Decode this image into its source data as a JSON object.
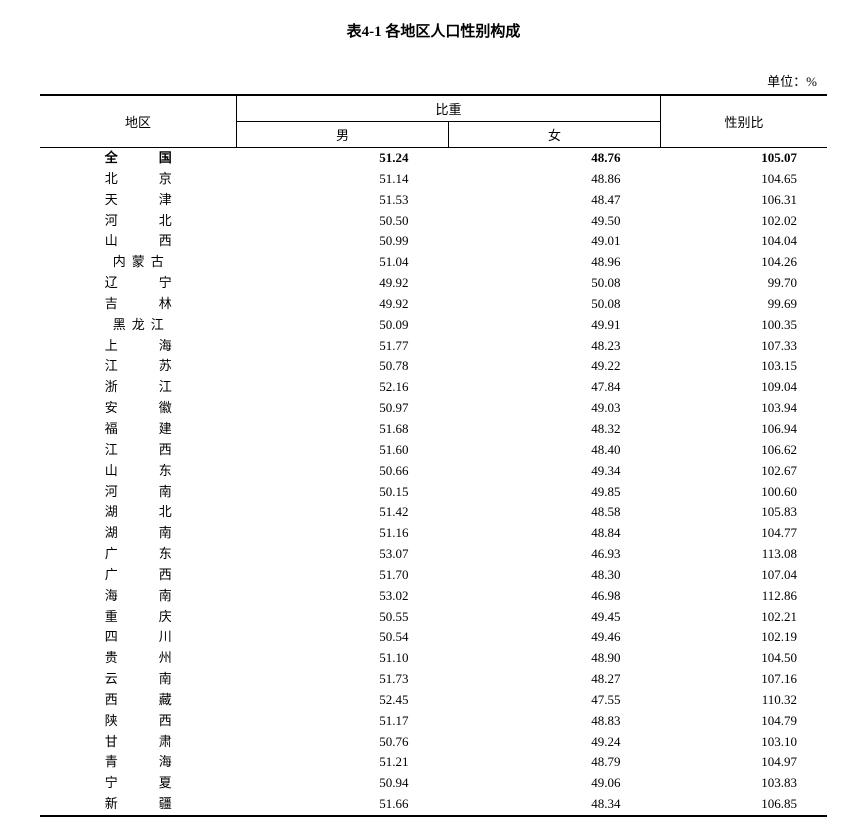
{
  "title": "表4-1 各地区人口性别构成",
  "unit": "单位：%",
  "headers": {
    "region": "地区",
    "proportion": "比重",
    "male": "男",
    "female": "女",
    "ratio": "性别比"
  },
  "table": {
    "columns": [
      "地区",
      "男",
      "女",
      "性别比"
    ],
    "col_align": [
      "center",
      "right",
      "right",
      "right"
    ],
    "border_color": "#000000",
    "background_color": "#ffffff",
    "font_size": 13
  },
  "rows": [
    {
      "region": "全　国",
      "chars": 2,
      "male": "51.24",
      "female": "48.76",
      "ratio": "105.07",
      "bold": true
    },
    {
      "region": "北　京",
      "chars": 2,
      "male": "51.14",
      "female": "48.86",
      "ratio": "104.65"
    },
    {
      "region": "天　津",
      "chars": 2,
      "male": "51.53",
      "female": "48.47",
      "ratio": "106.31"
    },
    {
      "region": "河　北",
      "chars": 2,
      "male": "50.50",
      "female": "49.50",
      "ratio": "102.02"
    },
    {
      "region": "山　西",
      "chars": 2,
      "male": "50.99",
      "female": "49.01",
      "ratio": "104.04"
    },
    {
      "region": "内蒙古",
      "chars": 3,
      "male": "51.04",
      "female": "48.96",
      "ratio": "104.26"
    },
    {
      "region": "辽　宁",
      "chars": 2,
      "male": "49.92",
      "female": "50.08",
      "ratio": "99.70"
    },
    {
      "region": "吉　林",
      "chars": 2,
      "male": "49.92",
      "female": "50.08",
      "ratio": "99.69"
    },
    {
      "region": "黑龙江",
      "chars": 3,
      "male": "50.09",
      "female": "49.91",
      "ratio": "100.35"
    },
    {
      "region": "上　海",
      "chars": 2,
      "male": "51.77",
      "female": "48.23",
      "ratio": "107.33"
    },
    {
      "region": "江　苏",
      "chars": 2,
      "male": "50.78",
      "female": "49.22",
      "ratio": "103.15"
    },
    {
      "region": "浙　江",
      "chars": 2,
      "male": "52.16",
      "female": "47.84",
      "ratio": "109.04"
    },
    {
      "region": "安　徽",
      "chars": 2,
      "male": "50.97",
      "female": "49.03",
      "ratio": "103.94"
    },
    {
      "region": "福　建",
      "chars": 2,
      "male": "51.68",
      "female": "48.32",
      "ratio": "106.94"
    },
    {
      "region": "江　西",
      "chars": 2,
      "male": "51.60",
      "female": "48.40",
      "ratio": "106.62"
    },
    {
      "region": "山　东",
      "chars": 2,
      "male": "50.66",
      "female": "49.34",
      "ratio": "102.67"
    },
    {
      "region": "河　南",
      "chars": 2,
      "male": "50.15",
      "female": "49.85",
      "ratio": "100.60"
    },
    {
      "region": "湖　北",
      "chars": 2,
      "male": "51.42",
      "female": "48.58",
      "ratio": "105.83"
    },
    {
      "region": "湖　南",
      "chars": 2,
      "male": "51.16",
      "female": "48.84",
      "ratio": "104.77"
    },
    {
      "region": "广　东",
      "chars": 2,
      "male": "53.07",
      "female": "46.93",
      "ratio": "113.08"
    },
    {
      "region": "广　西",
      "chars": 2,
      "male": "51.70",
      "female": "48.30",
      "ratio": "107.04"
    },
    {
      "region": "海　南",
      "chars": 2,
      "male": "53.02",
      "female": "46.98",
      "ratio": "112.86"
    },
    {
      "region": "重　庆",
      "chars": 2,
      "male": "50.55",
      "female": "49.45",
      "ratio": "102.21"
    },
    {
      "region": "四　川",
      "chars": 2,
      "male": "50.54",
      "female": "49.46",
      "ratio": "102.19"
    },
    {
      "region": "贵　州",
      "chars": 2,
      "male": "51.10",
      "female": "48.90",
      "ratio": "104.50"
    },
    {
      "region": "云　南",
      "chars": 2,
      "male": "51.73",
      "female": "48.27",
      "ratio": "107.16"
    },
    {
      "region": "西　藏",
      "chars": 2,
      "male": "52.45",
      "female": "47.55",
      "ratio": "110.32"
    },
    {
      "region": "陕　西",
      "chars": 2,
      "male": "51.17",
      "female": "48.83",
      "ratio": "104.79"
    },
    {
      "region": "甘　肃",
      "chars": 2,
      "male": "50.76",
      "female": "49.24",
      "ratio": "103.10"
    },
    {
      "region": "青　海",
      "chars": 2,
      "male": "51.21",
      "female": "48.79",
      "ratio": "104.97"
    },
    {
      "region": "宁　夏",
      "chars": 2,
      "male": "50.94",
      "female": "49.06",
      "ratio": "103.83"
    },
    {
      "region": "新　疆",
      "chars": 2,
      "male": "51.66",
      "female": "48.34",
      "ratio": "106.85"
    }
  ]
}
